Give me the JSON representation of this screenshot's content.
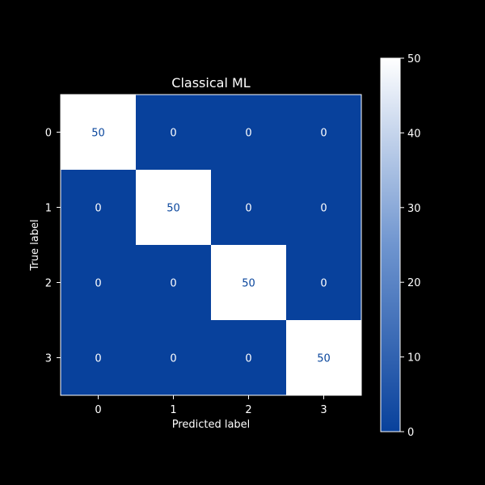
{
  "chart_data": {
    "type": "heatmap",
    "title": "Classical ML",
    "xlabel": "Predicted label",
    "ylabel": "True label",
    "x_categories": [
      "0",
      "1",
      "2",
      "3"
    ],
    "y_categories": [
      "0",
      "1",
      "2",
      "3"
    ],
    "values": [
      [
        50,
        0,
        0,
        0
      ],
      [
        0,
        50,
        0,
        0
      ],
      [
        0,
        0,
        50,
        0
      ],
      [
        0,
        0,
        0,
        50
      ]
    ],
    "colorbar": {
      "range": [
        0,
        50
      ],
      "ticks": [
        0,
        10,
        20,
        30,
        40,
        50
      ]
    },
    "colors": {
      "background": "#000000",
      "low": "#08306b",
      "high": "#ffffff",
      "text": "#ffffff",
      "text_on_high": "#08459c"
    },
    "grid": false
  }
}
